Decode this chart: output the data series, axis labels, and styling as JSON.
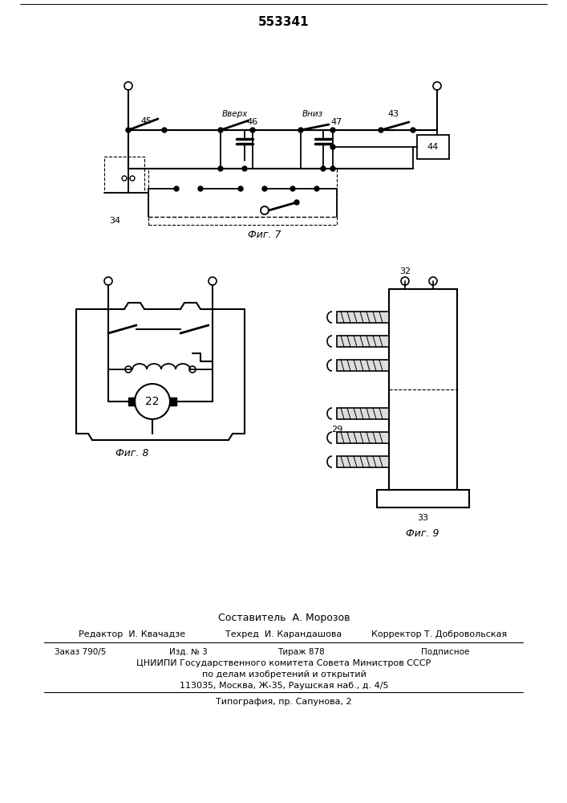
{
  "patent_number": "553341",
  "bg_color": "#ffffff",
  "fig7_label": "Фиг. 7",
  "fig8_label": "Фиг. 8",
  "fig9_label": "Фиг. 9",
  "footer": {
    "sostavitel": "Составитель  А. Морозов",
    "editor": "Редактор  И. Квачадзе",
    "tekhred": "Техред  И. Карандашова",
    "korrektor": "Корректор Т. Добровольская",
    "zakaz": "Заказ 790/5",
    "izd": "Изд. № 3",
    "tirazh": "Тираж 878",
    "podpisnoe": "Подписное",
    "tsniip": "ЦНИИПИ Государственного комитета Совета Министров СССР",
    "affairs": "по делам изобретений и открытий",
    "address": "113035, Москва, Ж-35, Раушская наб., д. 4/5",
    "typography": "Типография, пр. Сапунова, 2"
  }
}
